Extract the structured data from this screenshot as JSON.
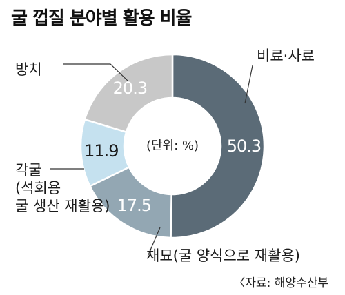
{
  "chart_data": {
    "type": "pie",
    "title": "굴 껍질 분야별 활용 비율",
    "unit_note": "(단위: %)",
    "source": "〈자료: 해양수산부",
    "slices": [
      {
        "label_lines": [
          "비료·사료"
        ],
        "value": 50.3,
        "color": "#5b6b77",
        "value_color": "#ffffff"
      },
      {
        "label_lines": [
          "채묘(굴 양식으로 재활용)"
        ],
        "value": 17.5,
        "color": "#93a7b3",
        "value_color": "#ffffff"
      },
      {
        "label_lines": [
          "각굴",
          "(석회용",
          "굴 생산 재활용)"
        ],
        "value": 11.9,
        "color": "#c5e1ef",
        "value_color": "#1a1a1a"
      },
      {
        "label_lines": [
          "방치"
        ],
        "value": 20.3,
        "color": "#c8c8c8",
        "value_color": "#ffffff"
      }
    ]
  }
}
